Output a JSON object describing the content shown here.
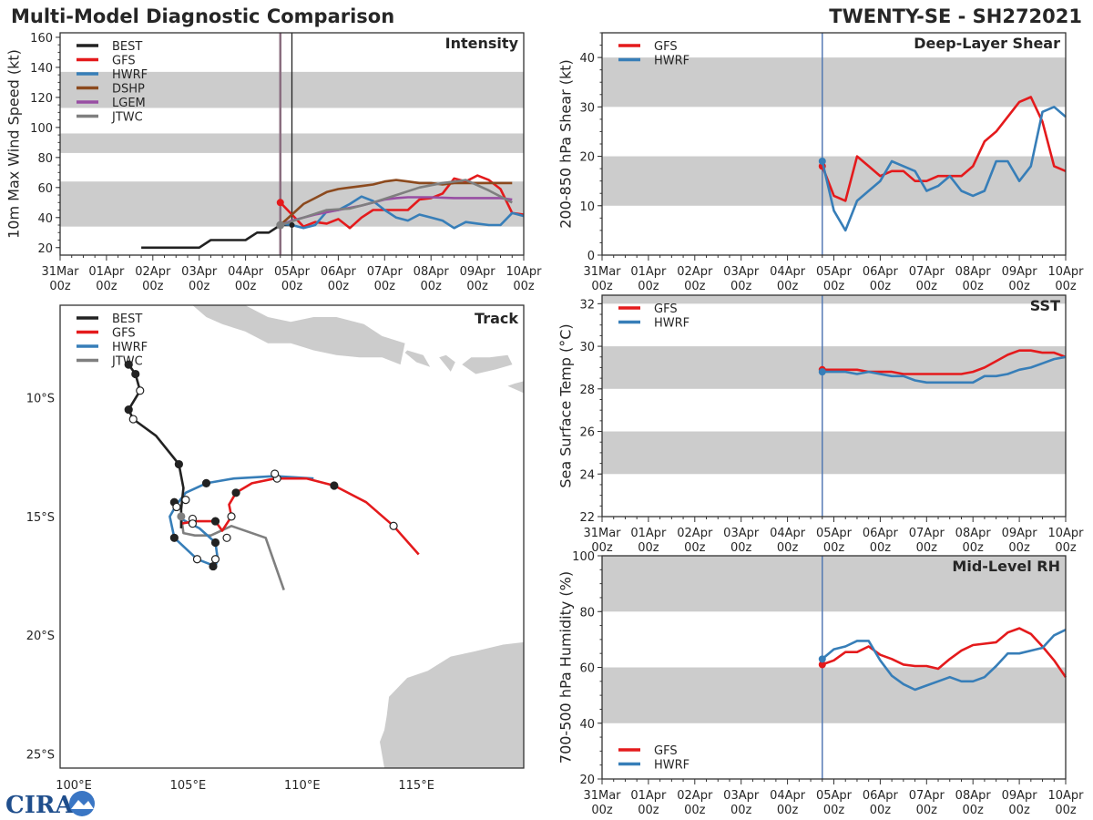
{
  "header": {
    "title": "Multi-Model Diagnostic Comparison",
    "storm": "TWENTY-SE - SH272021"
  },
  "colors": {
    "BEST": "#222222",
    "GFS": "#e41a1c",
    "HWRF": "#377eb8",
    "DSHP": "#8c4a1e",
    "LGEM": "#984ea3",
    "JTWC": "#7f7f7f",
    "band": "#cccccc",
    "land": "#cccccc"
  },
  "time_axis": {
    "labels": [
      "31Mar\n00z",
      "01Apr\n00z",
      "02Apr\n00z",
      "03Apr\n00z",
      "04Apr\n00z",
      "05Apr\n00z",
      "06Apr\n00z",
      "07Apr\n00z",
      "08Apr\n00z",
      "09Apr\n00z",
      "10Apr\n00z"
    ],
    "range_days": [
      0,
      10
    ],
    "init_day": 4.75,
    "current_day": 5.0
  },
  "logo": "CIRA",
  "chart_data": [
    {
      "id": "intensity",
      "type": "line",
      "title": "Intensity",
      "ylabel": "10m Max Wind Speed (kt)",
      "ylim": [
        15,
        163
      ],
      "yticks": [
        20,
        40,
        60,
        80,
        100,
        120,
        140,
        160
      ],
      "bands": [
        [
          34,
          64
        ],
        [
          83,
          96
        ],
        [
          113,
          137
        ]
      ],
      "legend": [
        "BEST",
        "GFS",
        "HWRF",
        "DSHP",
        "LGEM",
        "JTWC"
      ],
      "legend_position": "top-left",
      "series": [
        {
          "name": "BEST",
          "x": [
            1.75,
            2.0,
            2.25,
            2.5,
            2.75,
            3.0,
            3.25,
            3.5,
            3.75,
            4.0,
            4.25,
            4.5,
            4.75,
            5.0
          ],
          "y": [
            20,
            20,
            20,
            20,
            20,
            20,
            25,
            25,
            25,
            25,
            30,
            30,
            35,
            35
          ]
        },
        {
          "name": "GFS",
          "x": [
            4.75,
            5.0,
            5.25,
            5.5,
            5.75,
            6.0,
            6.25,
            6.5,
            6.75,
            7.0,
            7.25,
            7.5,
            7.75,
            8.0,
            8.25,
            8.5,
            8.75,
            9.0,
            9.25,
            9.5,
            9.75,
            10.0
          ],
          "y": [
            50,
            42,
            34,
            37,
            36,
            39,
            33,
            40,
            45,
            45,
            45,
            45,
            52,
            53,
            56,
            66,
            64,
            68,
            65,
            59,
            43,
            42
          ],
          "marker_first": true
        },
        {
          "name": "HWRF",
          "x": [
            4.75,
            5.0,
            5.25,
            5.5,
            5.75,
            6.0,
            6.25,
            6.5,
            6.75,
            7.0,
            7.25,
            7.5,
            7.75,
            8.0,
            8.25,
            8.5,
            8.75,
            9.0,
            9.25,
            9.5,
            9.75,
            10.0
          ],
          "y": [
            36,
            35,
            33,
            35,
            44,
            45,
            49,
            54,
            51,
            45,
            40,
            38,
            42,
            40,
            38,
            33,
            37,
            36,
            35,
            35,
            43,
            41
          ]
        },
        {
          "name": "DSHP",
          "x": [
            4.75,
            5.0,
            5.25,
            5.5,
            5.75,
            6.0,
            6.25,
            6.5,
            6.75,
            7.0,
            7.25,
            7.5,
            7.75,
            8.0,
            8.25,
            8.5,
            8.75,
            9.0,
            9.25,
            9.5,
            9.75
          ],
          "y": [
            35,
            42,
            49,
            53,
            57,
            59,
            60,
            61,
            62,
            64,
            65,
            64,
            63,
            63,
            62,
            63,
            63,
            63,
            63,
            63,
            63
          ]
        },
        {
          "name": "LGEM",
          "x": [
            4.75,
            5.0,
            5.5,
            6.0,
            6.5,
            7.0,
            7.25,
            7.5,
            8.0,
            8.5,
            9.0,
            9.5,
            9.75
          ],
          "y": [
            35,
            38,
            42,
            45,
            48,
            52,
            53,
            53.5,
            53.5,
            53,
            53,
            53,
            52
          ]
        },
        {
          "name": "JTWC",
          "x": [
            4.75,
            5.25,
            5.75,
            6.25,
            6.75,
            7.25,
            7.75,
            8.25,
            8.75,
            9.25,
            9.75
          ],
          "y": [
            35,
            40,
            45,
            46,
            50,
            55,
            60,
            63,
            65,
            58,
            50
          ]
        }
      ]
    },
    {
      "id": "shear",
      "type": "line",
      "title": "Deep-Layer Shear",
      "ylabel": "200-850 hPa Shear (kt)",
      "ylim": [
        0,
        45
      ],
      "yticks": [
        0,
        10,
        20,
        30,
        40
      ],
      "bands": [
        [
          10,
          20
        ],
        [
          30,
          40
        ]
      ],
      "legend": [
        "GFS",
        "HWRF"
      ],
      "legend_position": "top-left",
      "series": [
        {
          "name": "GFS",
          "x": [
            4.75,
            5.0,
            5.25,
            5.5,
            5.75,
            6.0,
            6.25,
            6.5,
            6.75,
            7.0,
            7.25,
            7.5,
            7.75,
            8.0,
            8.25,
            8.5,
            8.75,
            9.0,
            9.25,
            9.5,
            9.75,
            10.0
          ],
          "y": [
            18,
            12,
            11,
            20,
            18,
            16,
            17,
            17,
            15,
            15,
            16,
            16,
            16,
            18,
            23,
            25,
            28,
            31,
            32,
            27,
            18,
            17
          ]
        },
        {
          "name": "HWRF",
          "x": [
            4.75,
            5.0,
            5.25,
            5.5,
            5.75,
            6.0,
            6.25,
            6.5,
            6.75,
            7.0,
            7.25,
            7.5,
            7.75,
            8.0,
            8.25,
            8.5,
            8.75,
            9.0,
            9.25,
            9.5,
            9.75,
            10.0
          ],
          "y": [
            19,
            9,
            5,
            11,
            13,
            15,
            19,
            18,
            17,
            13,
            14,
            16,
            13,
            12,
            13,
            19,
            19,
            15,
            18,
            29,
            30,
            28
          ]
        }
      ]
    },
    {
      "id": "sst",
      "type": "line",
      "title": "SST",
      "ylabel": "Sea Surface Temp (°C)",
      "ylim": [
        22,
        32.4
      ],
      "yticks": [
        22,
        24,
        26,
        28,
        30,
        32
      ],
      "bands": [
        [
          24,
          26
        ],
        [
          28,
          30
        ],
        [
          32,
          33
        ]
      ],
      "legend": [
        "GFS",
        "HWRF"
      ],
      "legend_position": "top-left",
      "series": [
        {
          "name": "GFS",
          "x": [
            4.75,
            5.0,
            5.25,
            5.5,
            5.75,
            6.0,
            6.25,
            6.5,
            6.75,
            7.0,
            7.25,
            7.5,
            7.75,
            8.0,
            8.25,
            8.5,
            8.75,
            9.0,
            9.25,
            9.5,
            9.75,
            10.0
          ],
          "y": [
            28.9,
            28.9,
            28.9,
            28.9,
            28.8,
            28.8,
            28.8,
            28.7,
            28.7,
            28.7,
            28.7,
            28.7,
            28.7,
            28.8,
            29.0,
            29.3,
            29.6,
            29.8,
            29.8,
            29.7,
            29.7,
            29.5
          ]
        },
        {
          "name": "HWRF",
          "x": [
            4.75,
            5.0,
            5.25,
            5.5,
            5.75,
            6.0,
            6.25,
            6.5,
            6.75,
            7.0,
            7.25,
            7.5,
            7.75,
            8.0,
            8.25,
            8.5,
            8.75,
            9.0,
            9.25,
            9.5,
            9.75,
            10.0
          ],
          "y": [
            28.8,
            28.8,
            28.8,
            28.7,
            28.8,
            28.7,
            28.6,
            28.6,
            28.4,
            28.3,
            28.3,
            28.3,
            28.3,
            28.3,
            28.6,
            28.6,
            28.7,
            28.9,
            29.0,
            29.2,
            29.4,
            29.5
          ]
        }
      ]
    },
    {
      "id": "rh",
      "type": "line",
      "title": "Mid-Level RH",
      "ylabel": "700-500 hPa Humidity (%)",
      "ylim": [
        20,
        100
      ],
      "yticks": [
        20,
        40,
        60,
        80,
        100
      ],
      "bands": [
        [
          40,
          60
        ],
        [
          80,
          100
        ]
      ],
      "legend": [
        "GFS",
        "HWRF"
      ],
      "legend_position": "bottom-left",
      "series": [
        {
          "name": "GFS",
          "x": [
            4.75,
            5.0,
            5.25,
            5.5,
            5.75,
            6.0,
            6.25,
            6.5,
            6.75,
            7.0,
            7.25,
            7.5,
            7.75,
            8.0,
            8.25,
            8.5,
            8.75,
            9.0,
            9.25,
            9.5,
            9.75,
            10.0
          ],
          "y": [
            61,
            62.5,
            65.5,
            65.5,
            67.5,
            64.5,
            63,
            61,
            60.5,
            60.5,
            59.5,
            63,
            66,
            68,
            68.5,
            69,
            72.5,
            74,
            72,
            67.5,
            62.5,
            56.5
          ]
        },
        {
          "name": "HWRF",
          "x": [
            4.75,
            5.0,
            5.25,
            5.5,
            5.75,
            6.0,
            6.25,
            6.5,
            6.75,
            7.0,
            7.25,
            7.5,
            7.75,
            8.0,
            8.25,
            8.5,
            8.75,
            9.0,
            9.25,
            9.5,
            9.75,
            10.0
          ],
          "y": [
            63,
            66.5,
            67.5,
            69.5,
            69.5,
            62.5,
            57,
            54,
            52,
            53.5,
            55,
            56.5,
            55,
            55,
            56.5,
            60.5,
            65,
            65,
            66,
            67,
            71.5,
            73.5
          ]
        }
      ]
    },
    {
      "id": "track",
      "type": "line",
      "title": "Track",
      "xlim_lon": [
        99.4,
        119.7
      ],
      "ylim_lat": [
        -25.6,
        -6.1
      ],
      "xticks": [
        "100°E",
        "105°E",
        "110°E",
        "115°E"
      ],
      "yticks": [
        "10°S",
        "15°S",
        "20°S",
        "25°S"
      ],
      "legend": [
        "BEST",
        "GFS",
        "HWRF",
        "JTWC"
      ],
      "legend_position": "top-left",
      "series": [
        {
          "name": "BEST",
          "lon": [
            102.4,
            102.7,
            102.9,
            102.4,
            102.6,
            103.6,
            104.6,
            104.8,
            104.7,
            104.7
          ],
          "lat": [
            -8.6,
            -9.0,
            -9.7,
            -10.5,
            -10.9,
            -11.6,
            -12.8,
            -13.8,
            -14.7,
            -15.5
          ],
          "markers": [
            [
              "f",
              102.4,
              -8.6
            ],
            [
              "f",
              102.7,
              -9.0
            ],
            [
              "o",
              102.9,
              -9.7
            ],
            [
              "f",
              102.4,
              -10.5
            ],
            [
              "o",
              102.6,
              -10.9
            ],
            [
              "f",
              104.6,
              -12.8
            ]
          ]
        },
        {
          "name": "GFS",
          "lon": [
            104.7,
            105.3,
            106.2,
            106.5,
            106.9,
            106.8,
            107.1,
            107.8,
            108.8,
            110.2,
            111.4,
            112.8,
            114.0,
            115.1
          ],
          "lat": [
            -15.3,
            -15.2,
            -15.2,
            -15.6,
            -15.0,
            -14.5,
            -14.0,
            -13.6,
            -13.4,
            -13.4,
            -13.7,
            -14.4,
            -15.4,
            -16.6
          ],
          "markers": [
            [
              "f",
              106.2,
              -15.2
            ],
            [
              "o",
              106.7,
              -15.9
            ],
            [
              "o",
              106.9,
              -15.0
            ],
            [
              "f",
              107.1,
              -14.0
            ],
            [
              "o",
              108.9,
              -13.4
            ],
            [
              "f",
              111.4,
              -13.7
            ],
            [
              "o",
              114.0,
              -15.4
            ]
          ]
        },
        {
          "name": "HWRF",
          "lon": [
            104.7,
            105.5,
            106.2,
            106.3,
            106.2,
            105.4,
            104.4,
            104.2,
            104.5,
            104.9,
            105.8,
            107.0,
            108.8,
            110.5
          ],
          "lat": [
            -15.1,
            -15.5,
            -16.1,
            -16.8,
            -17.1,
            -16.8,
            -15.9,
            -15.0,
            -14.5,
            -14.0,
            -13.6,
            -13.4,
            -13.3,
            -13.4
          ],
          "markers": [
            [
              "o",
              105.2,
              -15.1
            ],
            [
              "o",
              105.2,
              -15.3
            ],
            [
              "f",
              106.2,
              -16.1
            ],
            [
              "o",
              106.2,
              -16.8
            ],
            [
              "f",
              106.1,
              -17.1
            ],
            [
              "o",
              105.4,
              -16.8
            ],
            [
              "f",
              104.4,
              -15.9
            ],
            [
              "f",
              104.4,
              -14.4
            ],
            [
              "o",
              104.5,
              -14.6
            ],
            [
              "o",
              104.9,
              -14.3
            ],
            [
              "f",
              105.8,
              -13.6
            ],
            [
              "o",
              108.8,
              -13.2
            ]
          ]
        },
        {
          "name": "JTWC",
          "lon": [
            104.7,
            104.8,
            105.3,
            106.0,
            106.9,
            108.4,
            109.2
          ],
          "lat": [
            -15.0,
            -15.7,
            -15.8,
            -15.8,
            -15.4,
            -15.9,
            -18.1
          ],
          "markers": []
        }
      ]
    }
  ]
}
